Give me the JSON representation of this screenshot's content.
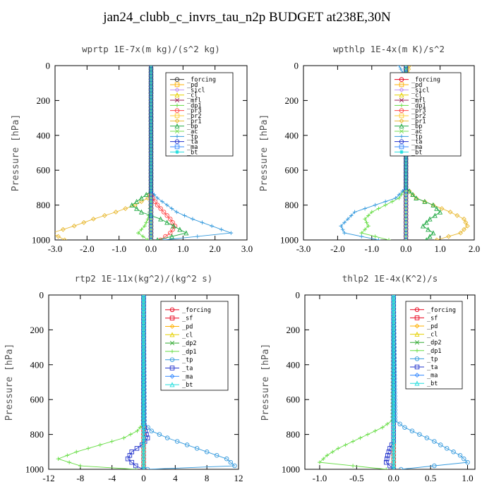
{
  "figure_title": "jan24_clubb_c_invrs_tau_n2p  BUDGET at238E,30N",
  "colors": {
    "_forcing": "#e8001a",
    "_pd": "#ffb000",
    "_sicl": "#c090f0",
    "_cl": "#e6d000",
    "_mfl": "#9a1f55",
    "_dp1": "#66dd44",
    "_dp2": "#33aa33",
    "_pr3": "#ff4444",
    "_pr2": "#ffcc33",
    "_pr1": "#e8b830",
    "_bp": "#22aa44",
    "_ac": "#77dd55",
    "_tp": "#3399dd",
    "_ta": "#2233cc",
    "_ma": "#3388ff",
    "_bt": "#22dddd",
    "_sf": "#e8001a",
    "_forcing_wprtp": "#333333"
  },
  "chart_data": [
    {
      "type": "line",
      "title": "wprtp  1E-7x(m kg)/(s^2 kg)",
      "ylabel": "Pressure [hPa]",
      "xlim": [
        -3,
        3
      ],
      "ylim": [
        0,
        1000
      ],
      "xticks": [
        "-3.0",
        "-2.0",
        "-1.0",
        "0.0",
        "1.0",
        "2.0",
        "3.0"
      ],
      "yticks": [
        "0",
        "200",
        "400",
        "600",
        "800",
        "1000"
      ],
      "y": [
        720,
        760,
        800,
        840,
        880,
        920,
        960,
        1000
      ],
      "series": [
        {
          "name": "_forcing",
          "values": [
            0,
            0,
            0,
            0,
            0,
            0,
            0,
            0
          ]
        },
        {
          "name": "_pd",
          "values": [
            0,
            0,
            0,
            0,
            0,
            0,
            0,
            0
          ]
        },
        {
          "name": "_sicl",
          "values": [
            0,
            0,
            0,
            0,
            0,
            0,
            0,
            0
          ]
        },
        {
          "name": "_cl",
          "values": [
            0,
            0,
            0,
            0,
            0,
            0,
            0,
            0
          ]
        },
        {
          "name": "_mfl",
          "values": [
            0,
            0,
            0,
            0,
            0,
            0,
            0,
            0
          ]
        },
        {
          "name": "_dp1",
          "values": [
            0,
            0,
            -0.02,
            -0.05,
            -0.1,
            -0.2,
            -0.4,
            -0.1
          ]
        },
        {
          "name": "_pr3",
          "values": [
            0,
            0.05,
            0.2,
            0.4,
            0.6,
            0.75,
            0.6,
            0.3
          ]
        },
        {
          "name": "_pr2",
          "values": [
            0,
            0,
            0,
            0,
            0,
            0,
            0,
            0
          ]
        },
        {
          "name": "_pr1",
          "values": [
            0,
            -0.1,
            -0.5,
            -1.1,
            -1.8,
            -2.4,
            -3.1,
            -2.7
          ]
        },
        {
          "name": "_bp",
          "values": [
            0,
            -0.3,
            -0.6,
            -0.3,
            0.3,
            0.7,
            1.1,
            0.2
          ]
        },
        {
          "name": "_ac",
          "values": [
            0,
            0,
            0,
            0,
            0,
            0,
            0,
            0
          ]
        },
        {
          "name": "_tp",
          "values": [
            0,
            0.2,
            0.5,
            0.8,
            1.3,
            1.9,
            2.5,
            0.4
          ]
        },
        {
          "name": "_ta",
          "values": [
            0,
            0,
            0,
            0,
            0,
            0,
            0,
            0
          ]
        },
        {
          "name": "_ma",
          "values": [
            0,
            0,
            0,
            0,
            0,
            0,
            0,
            0
          ]
        },
        {
          "name": "_bt",
          "values": [
            0,
            0,
            0,
            0,
            0,
            0,
            0,
            0
          ]
        }
      ]
    },
    {
      "type": "line",
      "title": "wpthlp  1E-4x(m K)/s^2",
      "ylabel": "Pressure [hPa]",
      "xlim": [
        -3,
        2
      ],
      "ylim": [
        0,
        1000
      ],
      "xticks": [
        "-3.0",
        "-2.0",
        "-1.0",
        "0.0",
        "1.0",
        "2.0"
      ],
      "yticks": [
        "0",
        "200",
        "400",
        "600",
        "800",
        "1000"
      ],
      "y": [
        0,
        40,
        80,
        700,
        760,
        800,
        840,
        880,
        920,
        960,
        1000
      ],
      "series": [
        {
          "name": "_forcing",
          "values": [
            0,
            0,
            0,
            0,
            0,
            0,
            0,
            0,
            0,
            0,
            0
          ]
        },
        {
          "name": "_pd",
          "values": [
            0,
            0,
            0,
            0,
            0,
            0,
            0,
            0,
            0,
            0,
            0
          ]
        },
        {
          "name": "_sicl",
          "values": [
            0,
            0,
            0,
            0,
            0,
            0,
            0,
            0,
            0,
            0,
            0
          ]
        },
        {
          "name": "_cl",
          "values": [
            0,
            0,
            0,
            0,
            0,
            0,
            0,
            0,
            0,
            0,
            0
          ]
        },
        {
          "name": "_mfl",
          "values": [
            0,
            0,
            0,
            0,
            0,
            0,
            0,
            0,
            0,
            0,
            0
          ]
        },
        {
          "name": "_dp1",
          "values": [
            0,
            0,
            0,
            0,
            -0.2,
            -0.6,
            -1.0,
            -1.2,
            -1.1,
            -1.3,
            -0.5
          ]
        },
        {
          "name": "_pr3",
          "values": [
            0,
            0,
            0,
            0,
            0,
            0,
            0,
            0,
            0,
            0,
            0
          ]
        },
        {
          "name": "_pr2",
          "values": [
            0,
            0,
            0,
            0,
            0,
            0,
            0,
            0,
            0,
            0,
            0
          ]
        },
        {
          "name": "_pr1",
          "values": [
            0.1,
            0.05,
            0.02,
            0,
            0.3,
            0.8,
            1.3,
            1.7,
            1.8,
            1.6,
            0.9
          ]
        },
        {
          "name": "_bp",
          "values": [
            0,
            0,
            0,
            0,
            0.3,
            0.8,
            1.0,
            0.7,
            0.5,
            0.8,
            0.6
          ]
        },
        {
          "name": "_ac",
          "values": [
            0,
            0,
            0,
            0,
            0,
            0,
            0,
            0,
            0,
            0,
            0
          ]
        },
        {
          "name": "_tp",
          "values": [
            -0.2,
            -0.1,
            0,
            0,
            -0.3,
            -0.9,
            -1.5,
            -1.7,
            -1.9,
            -1.8,
            -0.8
          ]
        },
        {
          "name": "_ta",
          "values": [
            0,
            0,
            0,
            0,
            0,
            0,
            0,
            0,
            0,
            0,
            0
          ]
        },
        {
          "name": "_ma",
          "values": [
            0,
            0,
            0,
            0,
            0,
            0,
            0,
            0,
            0,
            0,
            0
          ]
        },
        {
          "name": "_bt",
          "values": [
            0,
            0,
            0,
            0,
            0,
            0,
            0,
            0,
            0,
            0,
            0
          ]
        }
      ]
    },
    {
      "type": "line",
      "title": "rtp2  1E-11x(kg^2)/(kg^2 s)",
      "ylabel": "Pressure [hPa]",
      "xlim": [
        -12,
        12
      ],
      "ylim": [
        0,
        1000
      ],
      "xticks": [
        "-12",
        "-8",
        "-4",
        "0",
        "4",
        "8",
        "12"
      ],
      "yticks": [
        "0",
        "200",
        "400",
        "600",
        "800",
        "1000"
      ],
      "y": [
        740,
        780,
        820,
        860,
        900,
        940,
        980,
        1000
      ],
      "series": [
        {
          "name": "_forcing",
          "values": [
            0,
            0,
            0,
            0,
            0,
            0,
            0,
            0
          ]
        },
        {
          "name": "_sf",
          "values": [
            0,
            0,
            0,
            0,
            0,
            0,
            0,
            0
          ]
        },
        {
          "name": "_pd",
          "values": [
            0,
            0,
            0,
            0,
            0,
            0,
            0,
            0
          ]
        },
        {
          "name": "_cl",
          "values": [
            0,
            0,
            0,
            0,
            0,
            0,
            0,
            0
          ]
        },
        {
          "name": "_dp2",
          "values": [
            0,
            0,
            0,
            0,
            0,
            0,
            0,
            0
          ]
        },
        {
          "name": "_dp1",
          "values": [
            -0.1,
            -0.8,
            -2.5,
            -5.5,
            -8.5,
            -10.8,
            -8,
            -1
          ]
        },
        {
          "name": "_tp",
          "values": [
            0.1,
            1,
            3,
            5.5,
            8,
            10.5,
            11.5,
            0.5
          ]
        },
        {
          "name": "_ta",
          "values": [
            0,
            0.2,
            0.5,
            -0.2,
            -1.5,
            -2,
            -1,
            0
          ]
        },
        {
          "name": "_ma",
          "values": [
            0,
            0,
            0,
            0,
            0,
            0,
            0,
            0
          ]
        },
        {
          "name": "_bt",
          "values": [
            0,
            0,
            0,
            0,
            0,
            0,
            0,
            0
          ]
        }
      ]
    },
    {
      "type": "line",
      "title": "thlp2  1E-4x(K^2)/s",
      "ylabel": "Pressure [hPa]",
      "xlim": [
        -1.2,
        1.1
      ],
      "ylim": [
        0,
        1000
      ],
      "xticks": [
        "-1.0",
        "-0.5",
        "0.0",
        "0.5",
        "1.0"
      ],
      "yticks": [
        "0",
        "200",
        "400",
        "600",
        "800",
        "1000"
      ],
      "y": [
        720,
        760,
        800,
        840,
        880,
        920,
        960,
        1000
      ],
      "series": [
        {
          "name": "_forcing",
          "values": [
            0,
            0,
            0,
            0,
            0,
            0,
            0,
            0
          ]
        },
        {
          "name": "_sf",
          "values": [
            0,
            0,
            0,
            0,
            0,
            0,
            0,
            0
          ]
        },
        {
          "name": "_pd",
          "values": [
            0,
            0,
            0,
            0,
            0,
            0,
            0,
            0
          ]
        },
        {
          "name": "_cl",
          "values": [
            0,
            0,
            0,
            0,
            0,
            0,
            0,
            0
          ]
        },
        {
          "name": "_dp2",
          "values": [
            0,
            0,
            0,
            0,
            0,
            0,
            0,
            0
          ]
        },
        {
          "name": "_dp1",
          "values": [
            -0.02,
            -0.15,
            -0.35,
            -0.55,
            -0.75,
            -0.9,
            -1.0,
            -0.1
          ]
        },
        {
          "name": "_tp",
          "values": [
            0.02,
            0.15,
            0.35,
            0.55,
            0.72,
            0.9,
            1.0,
            0.1
          ]
        },
        {
          "name": "_ta",
          "values": [
            0,
            0,
            0,
            0,
            -0.05,
            -0.08,
            -0.1,
            0
          ]
        },
        {
          "name": "_ma",
          "values": [
            0,
            0,
            0,
            0,
            0,
            0,
            0,
            0
          ]
        },
        {
          "name": "_bt",
          "values": [
            0,
            0,
            0,
            0,
            0,
            0,
            0,
            0
          ]
        }
      ]
    }
  ]
}
